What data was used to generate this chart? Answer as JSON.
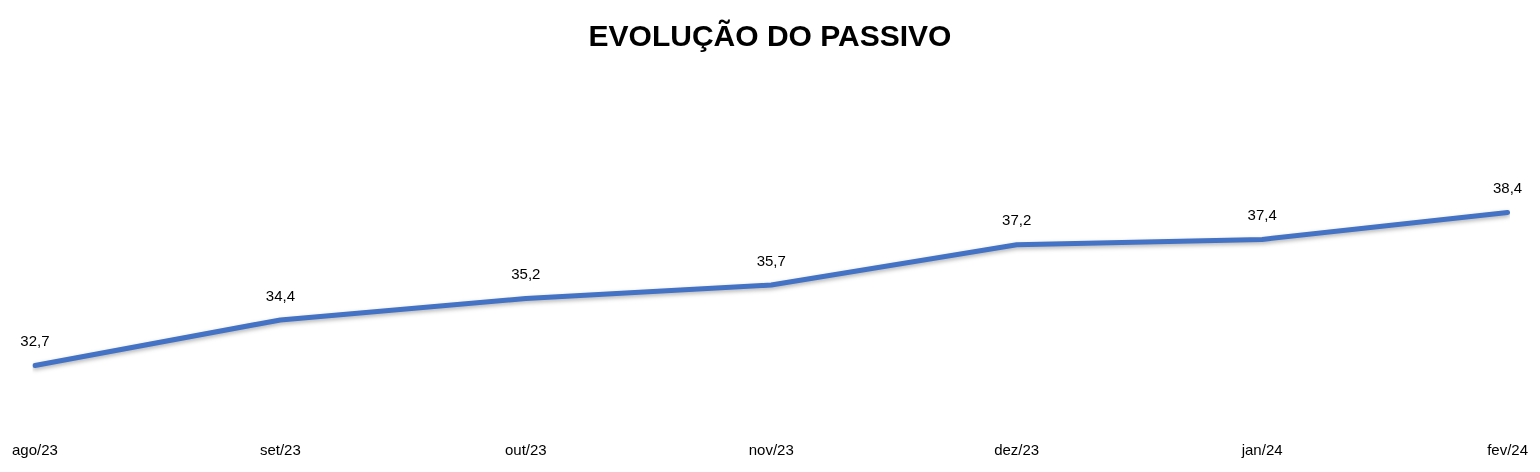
{
  "chart_data": {
    "type": "line",
    "title": "EVOLUÇÃO DO PASSIVO",
    "categories": [
      "ago/23",
      "set/23",
      "out/23",
      "nov/23",
      "dez/23",
      "jan/24",
      "fev/24"
    ],
    "series": [
      {
        "color": "#4472c4",
        "values": [
          32.7,
          34.4,
          35.2,
          35.7,
          37.2,
          37.4,
          38.4
        ],
        "value_labels": [
          "32,7",
          "34,4",
          "35,2",
          "35,7",
          "37,2",
          "37,4",
          "38,4"
        ]
      }
    ],
    "grid": false,
    "legend": false,
    "marker": "none",
    "line_style": "solid",
    "tick_labels": "x"
  }
}
